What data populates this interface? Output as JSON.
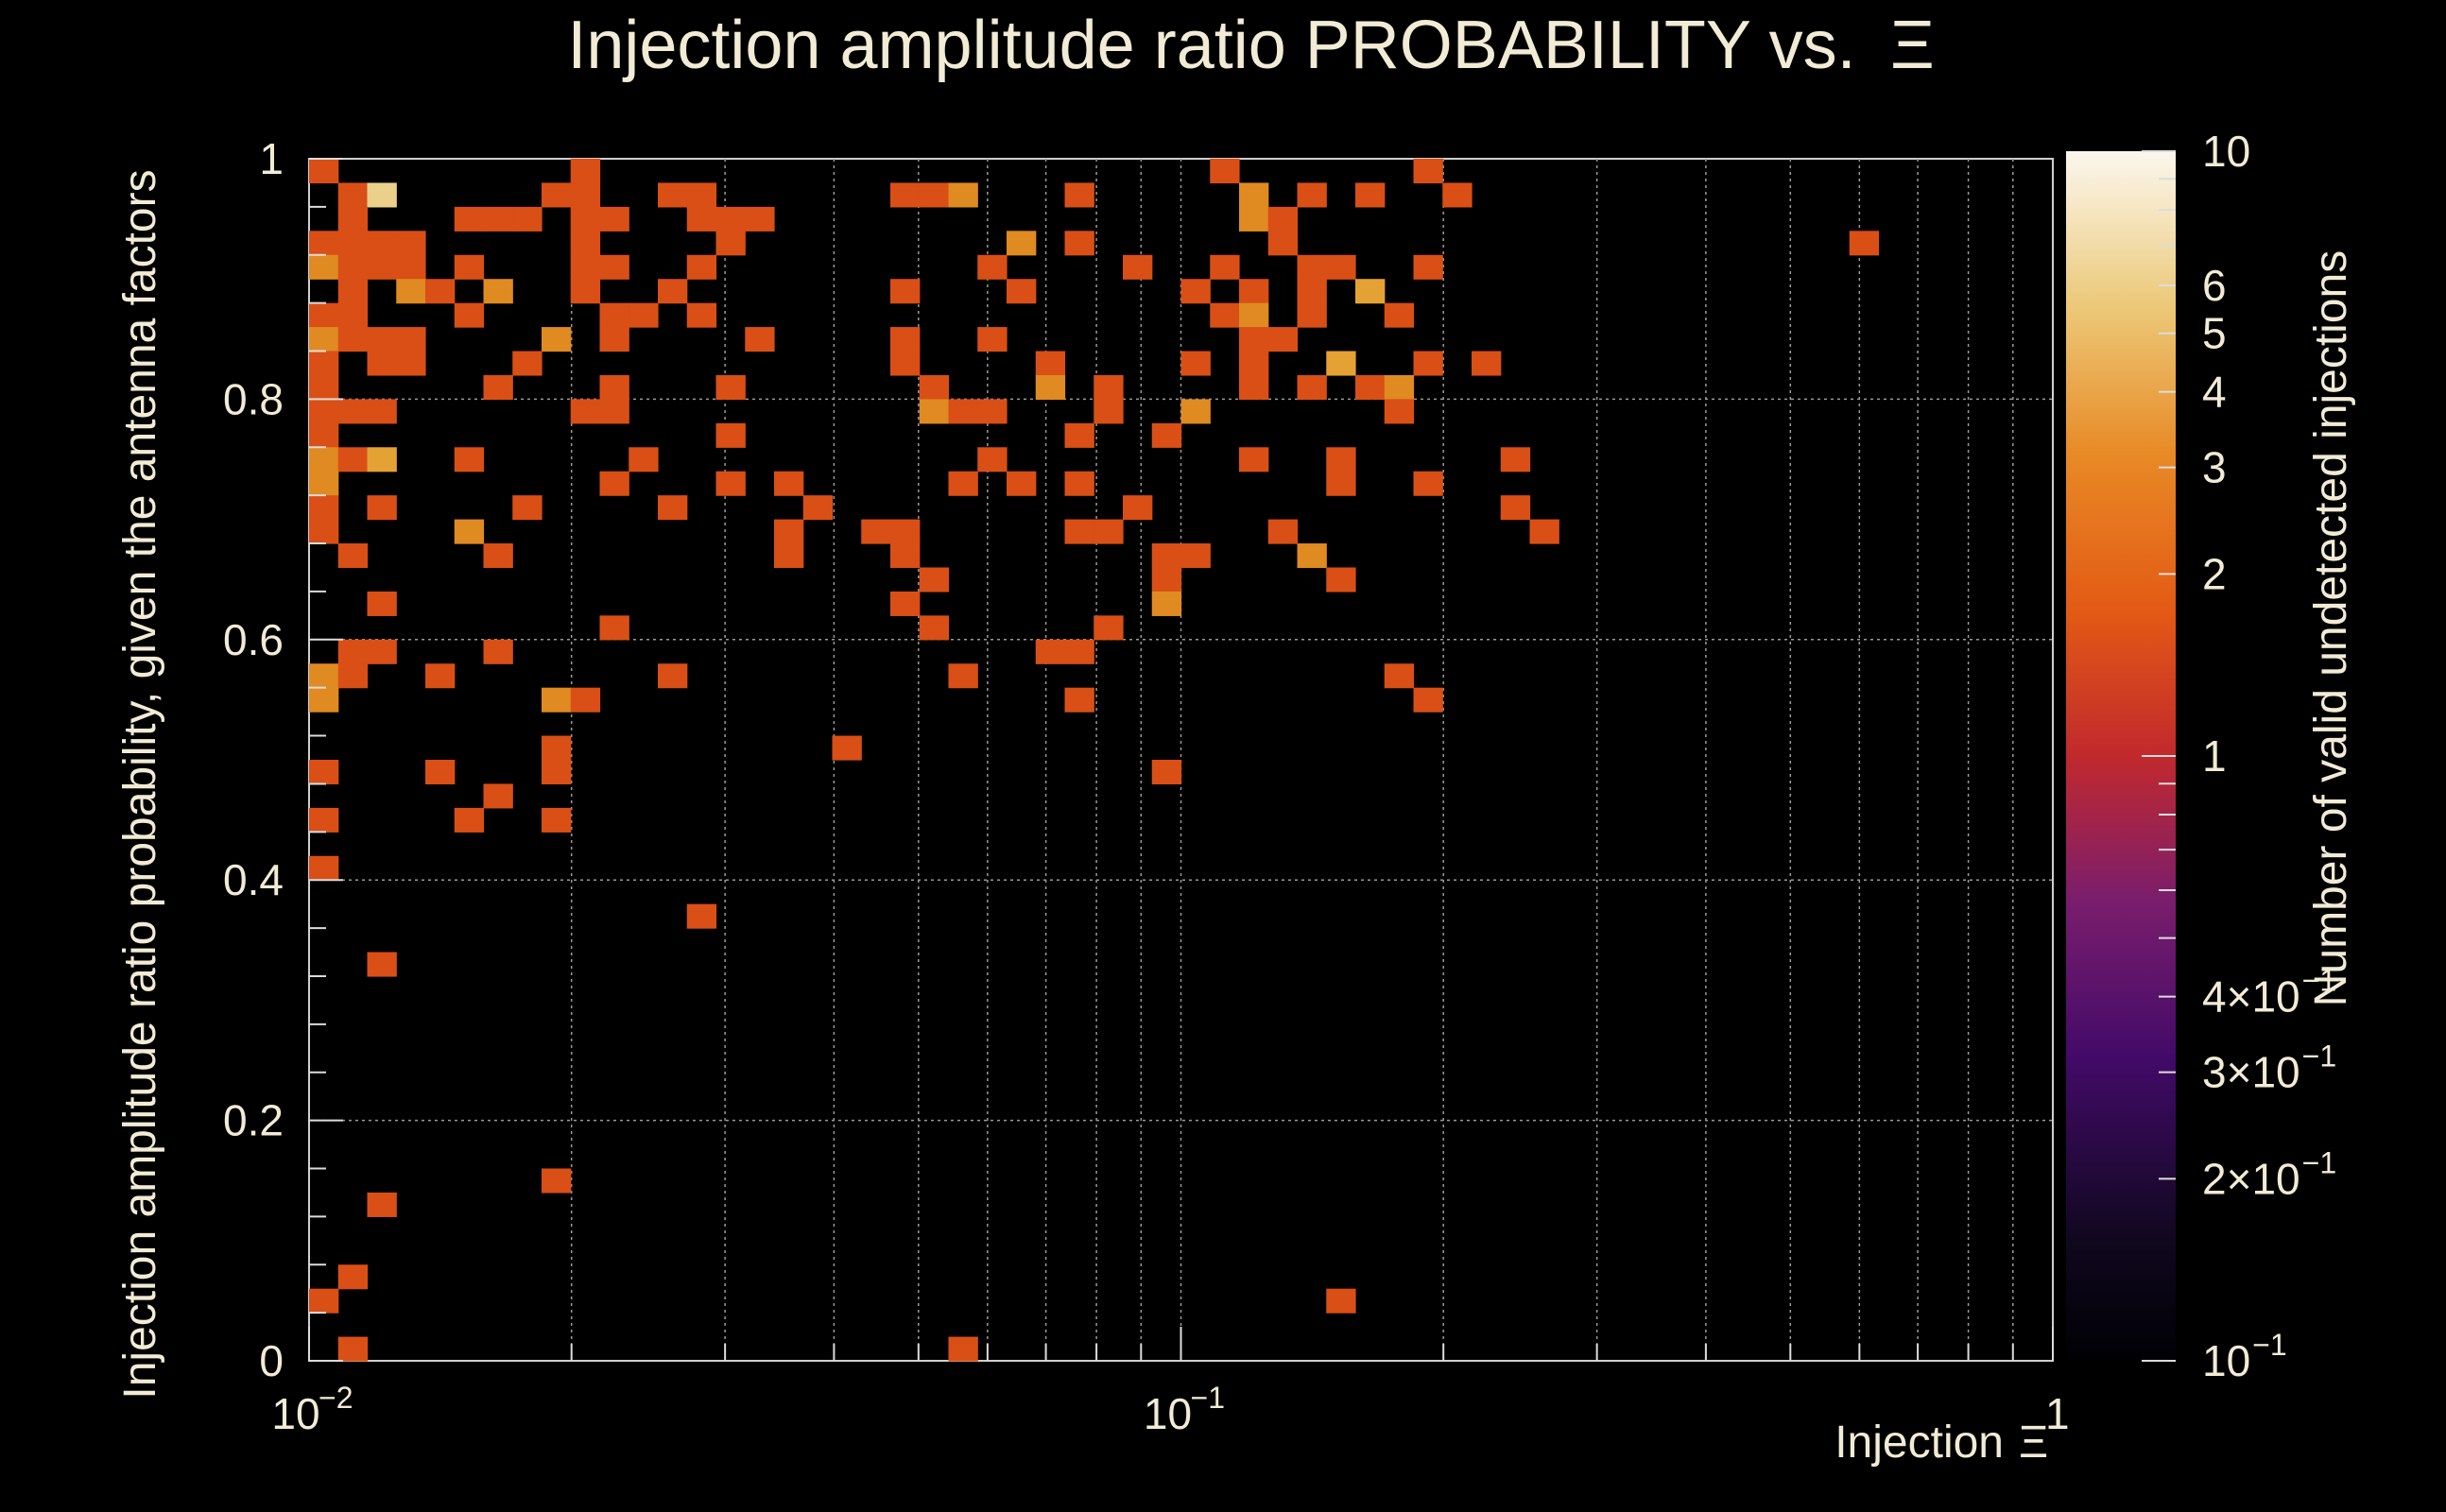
{
  "chart_data": {
    "type": "heatmap",
    "title": "Injection amplitude ratio PROBABILITY vs.",
    "title_symbol": "Ξ",
    "xlabel": "Injection",
    "xlabel_symbol": "Ξ",
    "ylabel": "Injection amplitude ratio probability, given the antenna factors",
    "zlabel": "Number of valid undetected injections",
    "x_scale": "log",
    "xlim": [
      0.01,
      1
    ],
    "ylim": [
      0,
      1
    ],
    "x_bins": 60,
    "y_bins": 50,
    "z_scale": "log",
    "zlim": [
      0.1,
      10
    ],
    "x_ticks": [
      {
        "value": 0.01,
        "base": "10",
        "exp": "−2"
      },
      {
        "value": 0.1,
        "base": "10",
        "exp": "−1"
      },
      {
        "value": 1,
        "base": "1",
        "exp": ""
      }
    ],
    "y_ticks": [
      {
        "value": 0,
        "label": "0"
      },
      {
        "value": 0.2,
        "label": "0.2"
      },
      {
        "value": 0.4,
        "label": "0.4"
      },
      {
        "value": 0.6,
        "label": "0.6"
      },
      {
        "value": 0.8,
        "label": "0.8"
      },
      {
        "value": 1,
        "label": "1"
      }
    ],
    "z_ticks": [
      {
        "value": 10,
        "label": "10"
      },
      {
        "value": 6,
        "label": "6"
      },
      {
        "value": 5,
        "label": "5"
      },
      {
        "value": 4,
        "label": "4"
      },
      {
        "value": 3,
        "label": "3"
      },
      {
        "value": 2,
        "label": "2"
      },
      {
        "value": 1,
        "label": "1"
      },
      {
        "value": 0.4,
        "label": "4×10",
        "exp": "−1"
      },
      {
        "value": 0.3,
        "label": "3×10",
        "exp": "−1"
      },
      {
        "value": 0.2,
        "label": "2×10",
        "exp": "−1"
      },
      {
        "value": 0.1,
        "label": "10",
        "exp": "−1"
      }
    ],
    "cells_note": "each entry is [x_bin, y_bin, count]; x bin i spans log10 x from -2 + i/30 to -2 + (i+1)/30, y bin j spans j/50 to (j+1)/50",
    "cells": [
      [
        0,
        49,
        1
      ],
      [
        9,
        49,
        1
      ],
      [
        31,
        49,
        1
      ],
      [
        38,
        49,
        1
      ],
      [
        1,
        48,
        1
      ],
      [
        2,
        48,
        4
      ],
      [
        8,
        48,
        1
      ],
      [
        9,
        48,
        1
      ],
      [
        12,
        48,
        1
      ],
      [
        13,
        48,
        1
      ],
      [
        20,
        48,
        1
      ],
      [
        21,
        48,
        1
      ],
      [
        22,
        48,
        2
      ],
      [
        26,
        48,
        1
      ],
      [
        32,
        48,
        2
      ],
      [
        34,
        48,
        1
      ],
      [
        36,
        48,
        1
      ],
      [
        39,
        48,
        1
      ],
      [
        1,
        47,
        1
      ],
      [
        5,
        47,
        1
      ],
      [
        6,
        47,
        1
      ],
      [
        7,
        47,
        1
      ],
      [
        9,
        47,
        1
      ],
      [
        10,
        47,
        1
      ],
      [
        13,
        47,
        1
      ],
      [
        14,
        47,
        1
      ],
      [
        15,
        47,
        1
      ],
      [
        32,
        47,
        2
      ],
      [
        33,
        47,
        1
      ],
      [
        0,
        46,
        1
      ],
      [
        1,
        46,
        1
      ],
      [
        2,
        46,
        1
      ],
      [
        3,
        46,
        1
      ],
      [
        9,
        46,
        1
      ],
      [
        14,
        46,
        1
      ],
      [
        24,
        46,
        2
      ],
      [
        26,
        46,
        1
      ],
      [
        33,
        46,
        1
      ],
      [
        53,
        46,
        1
      ],
      [
        0,
        45,
        2
      ],
      [
        1,
        45,
        1
      ],
      [
        2,
        45,
        1
      ],
      [
        3,
        45,
        1
      ],
      [
        5,
        45,
        1
      ],
      [
        9,
        45,
        1
      ],
      [
        10,
        45,
        1
      ],
      [
        13,
        45,
        1
      ],
      [
        23,
        45,
        1
      ],
      [
        28,
        45,
        1
      ],
      [
        31,
        45,
        1
      ],
      [
        34,
        45,
        1
      ],
      [
        35,
        45,
        1
      ],
      [
        38,
        45,
        1
      ],
      [
        1,
        44,
        1
      ],
      [
        3,
        44,
        2
      ],
      [
        4,
        44,
        1
      ],
      [
        6,
        44,
        2
      ],
      [
        9,
        44,
        1
      ],
      [
        12,
        44,
        1
      ],
      [
        20,
        44,
        1
      ],
      [
        24,
        44,
        1
      ],
      [
        30,
        44,
        1
      ],
      [
        32,
        44,
        1
      ],
      [
        34,
        44,
        1
      ],
      [
        36,
        44,
        3
      ],
      [
        0,
        43,
        1
      ],
      [
        1,
        43,
        1
      ],
      [
        5,
        43,
        1
      ],
      [
        10,
        43,
        1
      ],
      [
        11,
        43,
        1
      ],
      [
        13,
        43,
        1
      ],
      [
        31,
        43,
        1
      ],
      [
        32,
        43,
        2
      ],
      [
        34,
        43,
        1
      ],
      [
        37,
        43,
        1
      ],
      [
        0,
        42,
        2
      ],
      [
        1,
        42,
        1
      ],
      [
        2,
        42,
        1
      ],
      [
        3,
        42,
        1
      ],
      [
        8,
        42,
        2
      ],
      [
        10,
        42,
        1
      ],
      [
        15,
        42,
        1
      ],
      [
        20,
        42,
        1
      ],
      [
        23,
        42,
        1
      ],
      [
        32,
        42,
        1
      ],
      [
        33,
        42,
        1
      ],
      [
        0,
        41,
        1
      ],
      [
        2,
        41,
        1
      ],
      [
        3,
        41,
        1
      ],
      [
        7,
        41,
        1
      ],
      [
        20,
        41,
        1
      ],
      [
        25,
        41,
        1
      ],
      [
        30,
        41,
        1
      ],
      [
        32,
        41,
        1
      ],
      [
        35,
        41,
        3
      ],
      [
        38,
        41,
        1
      ],
      [
        40,
        41,
        1
      ],
      [
        0,
        40,
        1
      ],
      [
        6,
        40,
        1
      ],
      [
        10,
        40,
        1
      ],
      [
        14,
        40,
        1
      ],
      [
        21,
        40,
        1
      ],
      [
        25,
        40,
        2
      ],
      [
        27,
        40,
        1
      ],
      [
        32,
        40,
        1
      ],
      [
        34,
        40,
        1
      ],
      [
        36,
        40,
        1
      ],
      [
        37,
        40,
        2
      ],
      [
        0,
        39,
        1
      ],
      [
        1,
        39,
        1
      ],
      [
        2,
        39,
        1
      ],
      [
        9,
        39,
        1
      ],
      [
        10,
        39,
        1
      ],
      [
        21,
        39,
        2
      ],
      [
        22,
        39,
        1
      ],
      [
        23,
        39,
        1
      ],
      [
        27,
        39,
        1
      ],
      [
        30,
        39,
        2
      ],
      [
        37,
        39,
        1
      ],
      [
        0,
        38,
        1
      ],
      [
        14,
        38,
        1
      ],
      [
        26,
        38,
        1
      ],
      [
        29,
        38,
        1
      ],
      [
        0,
        37,
        2
      ],
      [
        1,
        37,
        1
      ],
      [
        2,
        37,
        3
      ],
      [
        5,
        37,
        1
      ],
      [
        11,
        37,
        1
      ],
      [
        23,
        37,
        1
      ],
      [
        32,
        37,
        1
      ],
      [
        35,
        37,
        1
      ],
      [
        41,
        37,
        1
      ],
      [
        0,
        36,
        2
      ],
      [
        10,
        36,
        1
      ],
      [
        14,
        36,
        1
      ],
      [
        16,
        36,
        1
      ],
      [
        22,
        36,
        1
      ],
      [
        24,
        36,
        1
      ],
      [
        26,
        36,
        1
      ],
      [
        35,
        36,
        1
      ],
      [
        38,
        36,
        1
      ],
      [
        0,
        35,
        1
      ],
      [
        2,
        35,
        1
      ],
      [
        7,
        35,
        1
      ],
      [
        12,
        35,
        1
      ],
      [
        17,
        35,
        1
      ],
      [
        28,
        35,
        1
      ],
      [
        41,
        35,
        1
      ],
      [
        0,
        34,
        1
      ],
      [
        5,
        34,
        2
      ],
      [
        16,
        34,
        1
      ],
      [
        19,
        34,
        1
      ],
      [
        20,
        34,
        1
      ],
      [
        26,
        34,
        1
      ],
      [
        27,
        34,
        1
      ],
      [
        33,
        34,
        1
      ],
      [
        42,
        34,
        1
      ],
      [
        1,
        33,
        1
      ],
      [
        6,
        33,
        1
      ],
      [
        16,
        33,
        1
      ],
      [
        20,
        33,
        1
      ],
      [
        29,
        33,
        1
      ],
      [
        30,
        33,
        1
      ],
      [
        34,
        33,
        2
      ],
      [
        21,
        32,
        1
      ],
      [
        29,
        32,
        1
      ],
      [
        35,
        32,
        1
      ],
      [
        2,
        31,
        1
      ],
      [
        20,
        31,
        1
      ],
      [
        29,
        31,
        2
      ],
      [
        10,
        30,
        1
      ],
      [
        21,
        30,
        1
      ],
      [
        27,
        30,
        1
      ],
      [
        1,
        29,
        1
      ],
      [
        2,
        29,
        1
      ],
      [
        6,
        29,
        1
      ],
      [
        25,
        29,
        1
      ],
      [
        26,
        29,
        1
      ],
      [
        0,
        28,
        2
      ],
      [
        1,
        28,
        1
      ],
      [
        4,
        28,
        1
      ],
      [
        12,
        28,
        1
      ],
      [
        22,
        28,
        1
      ],
      [
        37,
        28,
        1
      ],
      [
        0,
        27,
        2
      ],
      [
        8,
        27,
        2
      ],
      [
        9,
        27,
        1
      ],
      [
        26,
        27,
        1
      ],
      [
        38,
        27,
        1
      ],
      [
        8,
        25,
        1
      ],
      [
        18,
        25,
        1
      ],
      [
        0,
        24,
        1
      ],
      [
        4,
        24,
        1
      ],
      [
        8,
        24,
        1
      ],
      [
        29,
        24,
        1
      ],
      [
        6,
        23,
        1
      ],
      [
        0,
        22,
        1
      ],
      [
        5,
        22,
        1
      ],
      [
        8,
        22,
        1
      ],
      [
        0,
        20,
        1
      ],
      [
        13,
        18,
        1
      ],
      [
        2,
        16,
        1
      ],
      [
        8,
        7,
        1
      ],
      [
        2,
        6,
        1
      ],
      [
        1,
        3,
        1
      ],
      [
        0,
        2,
        1
      ],
      [
        35,
        2,
        1
      ],
      [
        1,
        0,
        1
      ],
      [
        22,
        0,
        1
      ]
    ]
  }
}
